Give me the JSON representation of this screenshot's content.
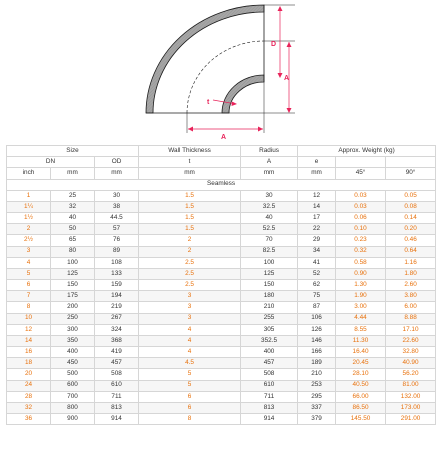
{
  "diagram": {
    "labels": {
      "d": "D",
      "a_vertical": "A",
      "a_horizontal": "A",
      "t": "t"
    },
    "colors": {
      "dimension": "#e8235a",
      "fill": "#a6a6a6",
      "line": "#1a1a1a"
    }
  },
  "table": {
    "header1": [
      "Size",
      "Wall Thickness",
      "Radius",
      "Approx. Weight (kg)"
    ],
    "header2": [
      "DN",
      "OD",
      "t",
      "A",
      "e"
    ],
    "header3": [
      "inch",
      "mm",
      "mm",
      "mm",
      "mm",
      "mm",
      "45°",
      "90°"
    ],
    "section": "Seamless",
    "rows": [
      [
        "1",
        "25",
        "30",
        "1.5",
        "30",
        "12",
        "0.03",
        "0.05"
      ],
      [
        "1¼",
        "32",
        "38",
        "1.5",
        "32.5",
        "14",
        "0.03",
        "0.08"
      ],
      [
        "1½",
        "40",
        "44.5",
        "1.5",
        "40",
        "17",
        "0.06",
        "0.14"
      ],
      [
        "2",
        "50",
        "57",
        "1.5",
        "52.5",
        "22",
        "0.10",
        "0.20"
      ],
      [
        "2½",
        "65",
        "76",
        "2",
        "70",
        "29",
        "0.23",
        "0.46"
      ],
      [
        "3",
        "80",
        "89",
        "2",
        "82.5",
        "34",
        "0.32",
        "0.64"
      ],
      [
        "4",
        "100",
        "108",
        "2.5",
        "100",
        "41",
        "0.58",
        "1.16"
      ],
      [
        "5",
        "125",
        "133",
        "2.5",
        "125",
        "52",
        "0.90",
        "1.80"
      ],
      [
        "6",
        "150",
        "159",
        "2.5",
        "150",
        "62",
        "1.30",
        "2.60"
      ],
      [
        "7",
        "175",
        "194",
        "3",
        "180",
        "75",
        "1.90",
        "3.80"
      ],
      [
        "8",
        "200",
        "219",
        "3",
        "210",
        "87",
        "3.00",
        "6.00"
      ],
      [
        "10",
        "250",
        "267",
        "3",
        "255",
        "106",
        "4.44",
        "8.88"
      ],
      [
        "12",
        "300",
        "324",
        "4",
        "305",
        "126",
        "8.55",
        "17.10"
      ],
      [
        "14",
        "350",
        "368",
        "4",
        "352.5",
        "146",
        "11.30",
        "22.60"
      ],
      [
        "16",
        "400",
        "419",
        "4",
        "400",
        "166",
        "16.40",
        "32.80"
      ],
      [
        "18",
        "450",
        "457",
        "4.5",
        "457",
        "189",
        "20.45",
        "40.90"
      ],
      [
        "20",
        "500",
        "508",
        "5",
        "508",
        "210",
        "28.10",
        "56.20"
      ],
      [
        "24",
        "600",
        "610",
        "5",
        "610",
        "253",
        "40.50",
        "81.00"
      ],
      [
        "28",
        "700",
        "711",
        "6",
        "711",
        "295",
        "66.00",
        "132.00"
      ],
      [
        "32",
        "800",
        "813",
        "6",
        "813",
        "337",
        "86.50",
        "173.00"
      ],
      [
        "36",
        "900",
        "914",
        "8",
        "914",
        "379",
        "145.50",
        "291.00"
      ]
    ]
  }
}
